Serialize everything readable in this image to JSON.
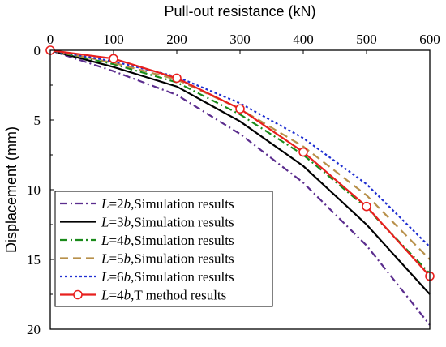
{
  "chart_data": {
    "type": "line",
    "xlabel": "Pull-out resistance (kN)",
    "ylabel": "Displacement (mm)",
    "xlim": [
      0,
      600
    ],
    "ylim": [
      0,
      20
    ],
    "y_inverted": true,
    "x_axis_position": "top",
    "grid": false,
    "legend_position": "bottom-left",
    "x_ticks": [
      0,
      100,
      200,
      300,
      400,
      500,
      600
    ],
    "y_ticks": [
      0,
      5,
      10,
      15,
      20
    ],
    "x": [
      0,
      100,
      200,
      300,
      400,
      500,
      600
    ],
    "series": [
      {
        "name": "L=2b,Simulation results",
        "label_italic": "L",
        "label_mid": "=2",
        "label_italic2": "b",
        "label_rest": ",Simulation results",
        "color": "#5b2d8e",
        "dash": "dashdot",
        "marker": "none",
        "values": [
          0,
          1.5,
          3.2,
          6.0,
          9.5,
          14.0,
          19.7
        ]
      },
      {
        "name": "L=3b,Simulation results",
        "label_italic": "L",
        "label_mid": "=3",
        "label_italic2": "b",
        "label_rest": ",Simulation results",
        "color": "#000000",
        "dash": "solid",
        "marker": "none",
        "values": [
          0,
          1.2,
          2.6,
          5.1,
          8.3,
          12.5,
          17.5
        ]
      },
      {
        "name": "L=4b,Simulation results",
        "label_italic": "L",
        "label_mid": "=4",
        "label_italic2": "b",
        "label_rest": ",Simulation results",
        "color": "#1a8a1a",
        "dash": "dashdot",
        "marker": "none",
        "values": [
          0,
          1.0,
          2.3,
          4.6,
          7.5,
          11.3,
          16.0
        ]
      },
      {
        "name": "L=5b,Simulation results",
        "label_italic": "L",
        "label_mid": "=5",
        "label_italic2": "b",
        "label_rest": ",Simulation results",
        "color": "#b8904a",
        "dash": "dash",
        "marker": "none",
        "values": [
          0,
          0.9,
          2.1,
          4.2,
          6.9,
          10.4,
          15.0
        ]
      },
      {
        "name": "L=6b,Simulation results",
        "label_italic": "L",
        "label_mid": "=6",
        "label_italic2": "b",
        "label_rest": ",Simulation results",
        "color": "#1f2fd1",
        "dash": "dot",
        "marker": "none",
        "values": [
          0,
          0.8,
          1.9,
          3.8,
          6.3,
          9.6,
          14.1
        ]
      },
      {
        "name": "L=4b,T method results",
        "label_italic": "L",
        "label_mid": "=4",
        "label_italic2": "b",
        "label_rest": ",T method results",
        "color": "#e8201e",
        "dash": "solid",
        "marker": "circle",
        "values": [
          0,
          0.6,
          2.0,
          4.2,
          7.3,
          11.2,
          16.2
        ]
      }
    ]
  }
}
